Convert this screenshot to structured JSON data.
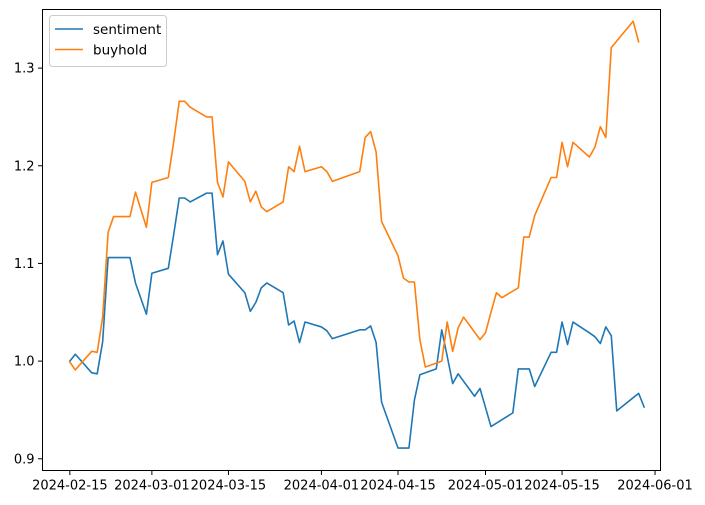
{
  "chart_data": {
    "type": "line",
    "title": "",
    "xlabel": "",
    "ylabel": "",
    "xlim": [
      "2024-02-10",
      "2024-06-02"
    ],
    "ylim": [
      0.888,
      1.36
    ],
    "grid": false,
    "legend_position": "top-left",
    "x_ticks": [
      "2024-02-15",
      "2024-03-01",
      "2024-03-15",
      "2024-04-01",
      "2024-04-15",
      "2024-05-01",
      "2024-05-15",
      "2024-06-01"
    ],
    "y_ticks": [
      0.9,
      1.0,
      1.1,
      1.2,
      1.3
    ],
    "y_tick_labels": [
      "0.9",
      "1.0",
      "1.1",
      "1.2",
      "1.3"
    ],
    "series": [
      {
        "name": "sentiment",
        "color": "#1f77b4",
        "points": [
          [
            "2024-02-15",
            1.0
          ],
          [
            "2024-02-16",
            1.007
          ],
          [
            "2024-02-19",
            0.988
          ],
          [
            "2024-02-20",
            0.987
          ],
          [
            "2024-02-21",
            1.02
          ],
          [
            "2024-02-22",
            1.106
          ],
          [
            "2024-02-26",
            1.106
          ],
          [
            "2024-02-27",
            1.08
          ],
          [
            "2024-02-29",
            1.048
          ],
          [
            "2024-03-01",
            1.09
          ],
          [
            "2024-03-04",
            1.095
          ],
          [
            "2024-03-05",
            1.13
          ],
          [
            "2024-03-06",
            1.167
          ],
          [
            "2024-03-07",
            1.167
          ],
          [
            "2024-03-08",
            1.163
          ],
          [
            "2024-03-11",
            1.172
          ],
          [
            "2024-03-12",
            1.172
          ],
          [
            "2024-03-13",
            1.109
          ],
          [
            "2024-03-14",
            1.123
          ],
          [
            "2024-03-15",
            1.089
          ],
          [
            "2024-03-18",
            1.07
          ],
          [
            "2024-03-19",
            1.051
          ],
          [
            "2024-03-20",
            1.06
          ],
          [
            "2024-03-21",
            1.075
          ],
          [
            "2024-03-22",
            1.08
          ],
          [
            "2024-03-25",
            1.07
          ],
          [
            "2024-03-26",
            1.037
          ],
          [
            "2024-03-27",
            1.041
          ],
          [
            "2024-03-28",
            1.019
          ],
          [
            "2024-03-29",
            1.04
          ],
          [
            "2024-04-01",
            1.035
          ],
          [
            "2024-04-02",
            1.031
          ],
          [
            "2024-04-03",
            1.023
          ],
          [
            "2024-04-08",
            1.032
          ],
          [
            "2024-04-09",
            1.032
          ],
          [
            "2024-04-10",
            1.036
          ],
          [
            "2024-04-11",
            1.019
          ],
          [
            "2024-04-12",
            0.958
          ],
          [
            "2024-04-15",
            0.911
          ],
          [
            "2024-04-16",
            0.911
          ],
          [
            "2024-04-17",
            0.911
          ],
          [
            "2024-04-18",
            0.96
          ],
          [
            "2024-04-19",
            0.986
          ],
          [
            "2024-04-22",
            0.992
          ],
          [
            "2024-04-23",
            1.032
          ],
          [
            "2024-04-24",
            1.005
          ],
          [
            "2024-04-25",
            0.977
          ],
          [
            "2024-04-26",
            0.987
          ],
          [
            "2024-04-29",
            0.964
          ],
          [
            "2024-04-30",
            0.972
          ],
          [
            "2024-05-02",
            0.933
          ],
          [
            "2024-05-06",
            0.947
          ],
          [
            "2024-05-07",
            0.992
          ],
          [
            "2024-05-09",
            0.992
          ],
          [
            "2024-05-10",
            0.974
          ],
          [
            "2024-05-13",
            1.009
          ],
          [
            "2024-05-14",
            1.009
          ],
          [
            "2024-05-15",
            1.04
          ],
          [
            "2024-05-16",
            1.017
          ],
          [
            "2024-05-17",
            1.04
          ],
          [
            "2024-05-20",
            1.029
          ],
          [
            "2024-05-21",
            1.025
          ],
          [
            "2024-05-22",
            1.018
          ],
          [
            "2024-05-23",
            1.035
          ],
          [
            "2024-05-24",
            1.026
          ],
          [
            "2024-05-25",
            0.949
          ],
          [
            "2024-05-29",
            0.967
          ],
          [
            "2024-05-30",
            0.953
          ]
        ]
      },
      {
        "name": "buyhold",
        "color": "#ff7f0e",
        "points": [
          [
            "2024-02-15",
            0.999
          ],
          [
            "2024-02-16",
            0.991
          ],
          [
            "2024-02-19",
            1.01
          ],
          [
            "2024-02-20",
            1.009
          ],
          [
            "2024-02-21",
            1.045
          ],
          [
            "2024-02-22",
            1.132
          ],
          [
            "2024-02-23",
            1.148
          ],
          [
            "2024-02-26",
            1.148
          ],
          [
            "2024-02-27",
            1.173
          ],
          [
            "2024-02-29",
            1.137
          ],
          [
            "2024-03-01",
            1.183
          ],
          [
            "2024-03-04",
            1.188
          ],
          [
            "2024-03-05",
            1.225
          ],
          [
            "2024-03-06",
            1.266
          ],
          [
            "2024-03-07",
            1.266
          ],
          [
            "2024-03-08",
            1.26
          ],
          [
            "2024-03-11",
            1.25
          ],
          [
            "2024-03-12",
            1.25
          ],
          [
            "2024-03-13",
            1.183
          ],
          [
            "2024-03-14",
            1.168
          ],
          [
            "2024-03-15",
            1.204
          ],
          [
            "2024-03-18",
            1.184
          ],
          [
            "2024-03-19",
            1.163
          ],
          [
            "2024-03-20",
            1.174
          ],
          [
            "2024-03-21",
            1.158
          ],
          [
            "2024-03-22",
            1.153
          ],
          [
            "2024-03-25",
            1.163
          ],
          [
            "2024-03-26",
            1.199
          ],
          [
            "2024-03-27",
            1.194
          ],
          [
            "2024-03-28",
            1.22
          ],
          [
            "2024-03-29",
            1.194
          ],
          [
            "2024-04-01",
            1.199
          ],
          [
            "2024-04-02",
            1.194
          ],
          [
            "2024-04-03",
            1.184
          ],
          [
            "2024-04-08",
            1.194
          ],
          [
            "2024-04-09",
            1.229
          ],
          [
            "2024-04-10",
            1.235
          ],
          [
            "2024-04-11",
            1.214
          ],
          [
            "2024-04-12",
            1.143
          ],
          [
            "2024-04-15",
            1.108
          ],
          [
            "2024-04-16",
            1.085
          ],
          [
            "2024-04-17",
            1.081
          ],
          [
            "2024-04-18",
            1.081
          ],
          [
            "2024-04-19",
            1.022
          ],
          [
            "2024-04-20",
            0.994
          ],
          [
            "2024-04-23",
            1.0
          ],
          [
            "2024-04-24",
            1.04
          ],
          [
            "2024-04-25",
            1.01
          ],
          [
            "2024-04-26",
            1.034
          ],
          [
            "2024-04-27",
            1.045
          ],
          [
            "2024-04-30",
            1.022
          ],
          [
            "2024-05-01",
            1.029
          ],
          [
            "2024-05-02",
            1.05
          ],
          [
            "2024-05-03",
            1.07
          ],
          [
            "2024-05-04",
            1.065
          ],
          [
            "2024-05-07",
            1.075
          ],
          [
            "2024-05-08",
            1.127
          ],
          [
            "2024-05-09",
            1.127
          ],
          [
            "2024-05-10",
            1.149
          ],
          [
            "2024-05-13",
            1.188
          ],
          [
            "2024-05-14",
            1.188
          ],
          [
            "2024-05-15",
            1.224
          ],
          [
            "2024-05-16",
            1.199
          ],
          [
            "2024-05-17",
            1.224
          ],
          [
            "2024-05-20",
            1.209
          ],
          [
            "2024-05-21",
            1.219
          ],
          [
            "2024-05-22",
            1.24
          ],
          [
            "2024-05-23",
            1.229
          ],
          [
            "2024-05-24",
            1.321
          ],
          [
            "2024-05-28",
            1.348
          ],
          [
            "2024-05-29",
            1.327
          ]
        ]
      }
    ]
  }
}
